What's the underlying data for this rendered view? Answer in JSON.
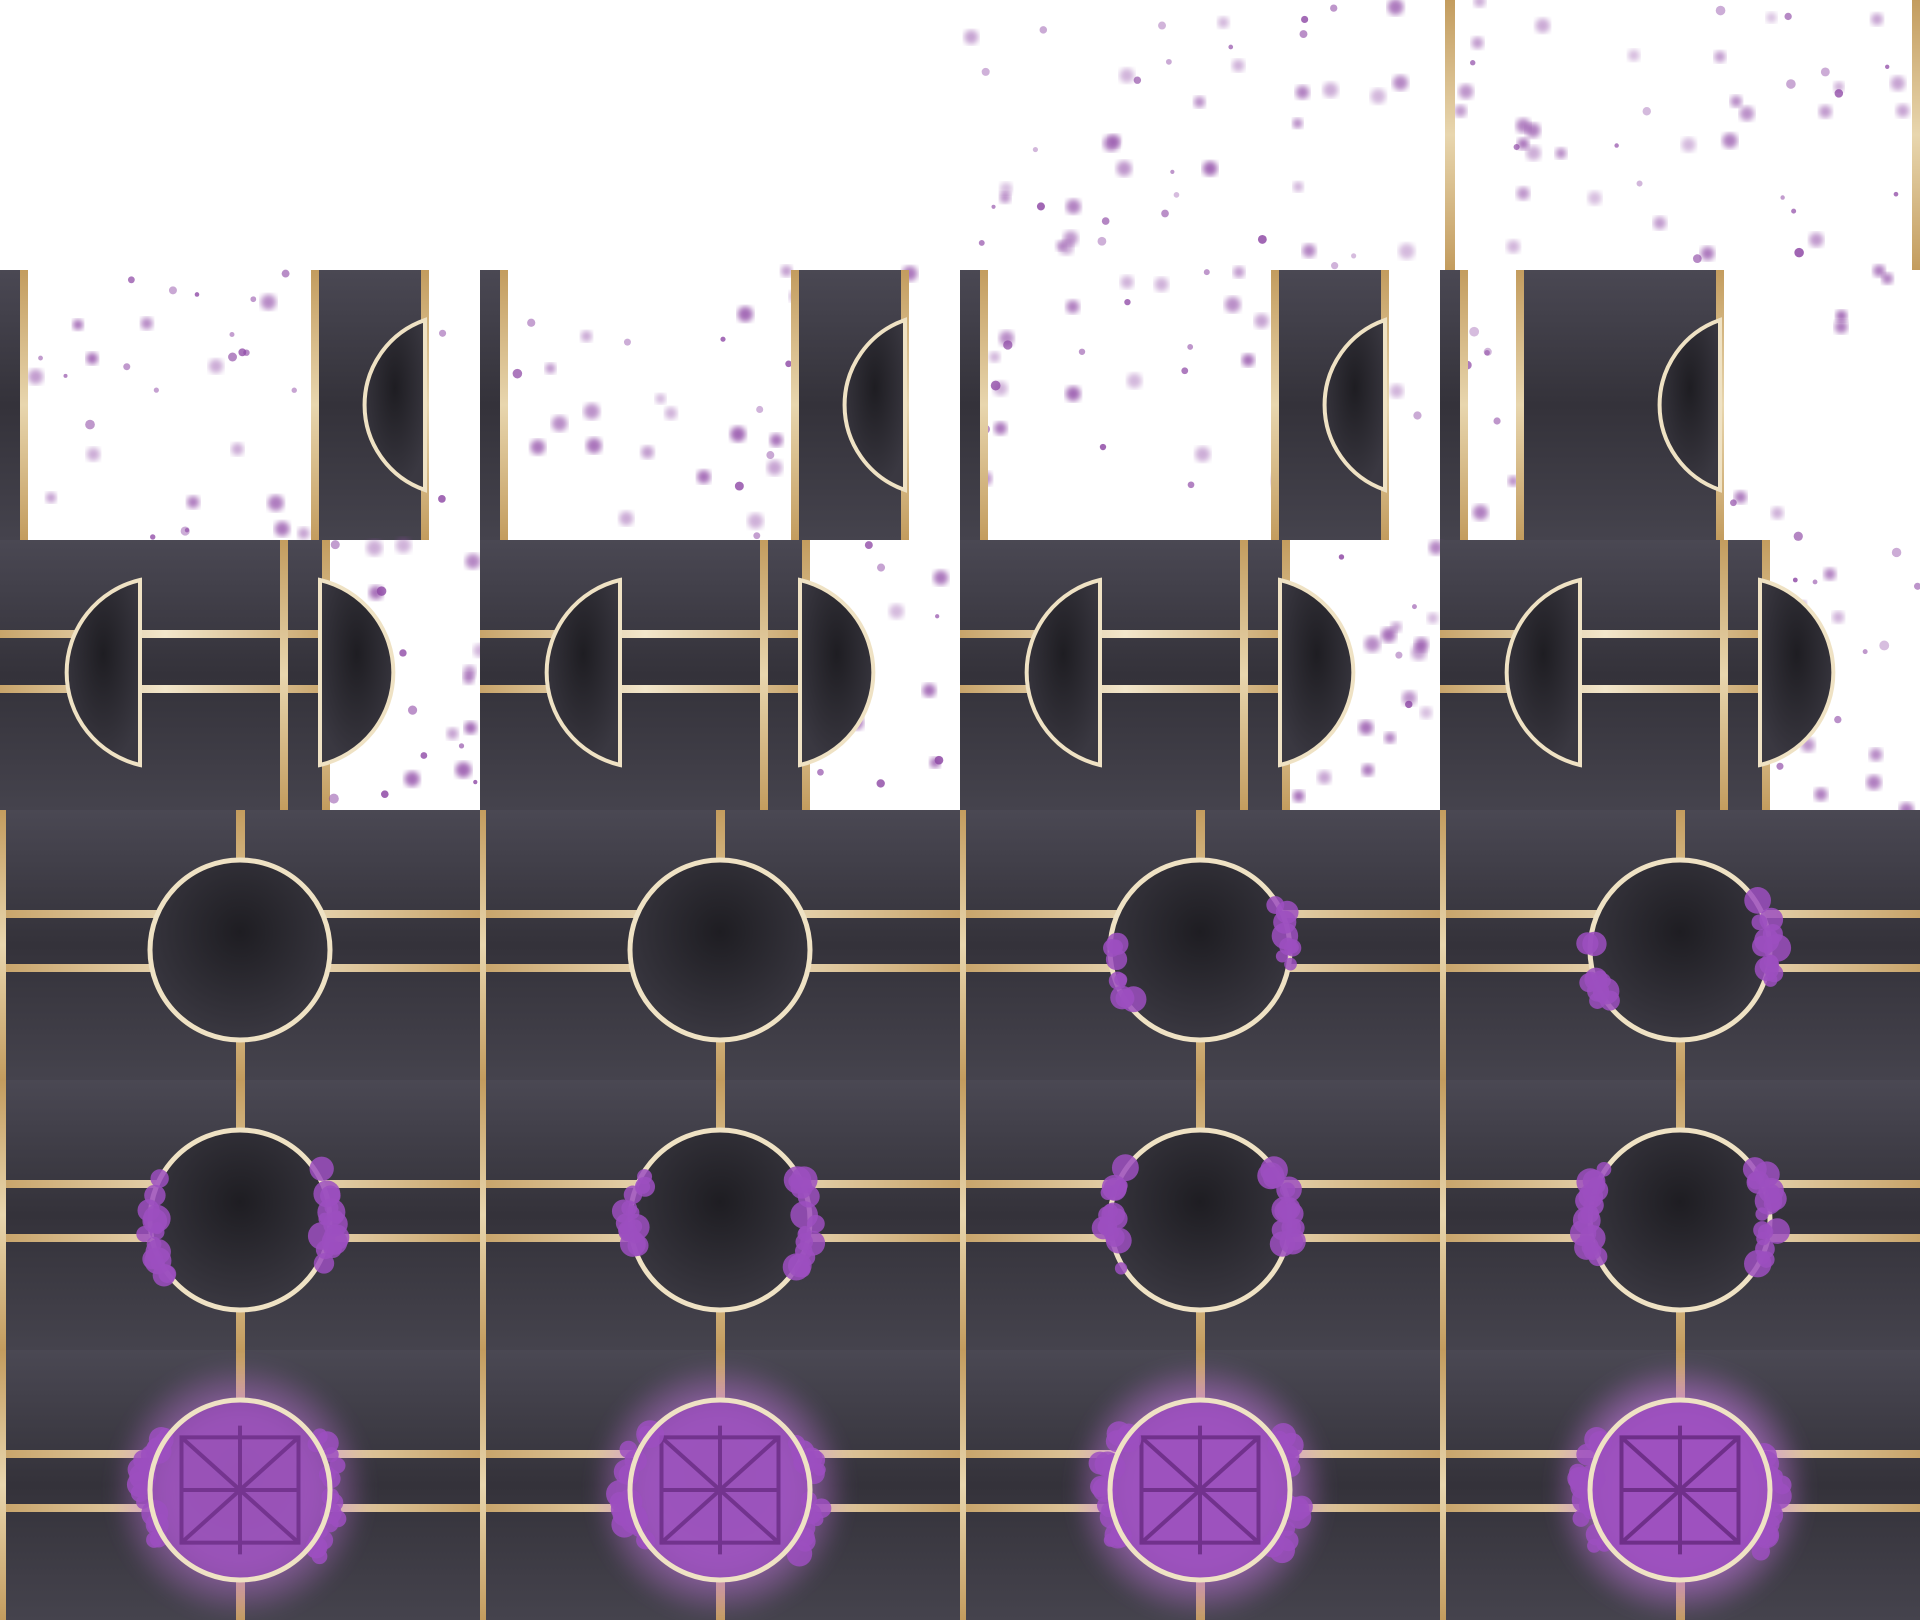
{
  "sheet": {
    "description_name": "sprite-sheet",
    "rows": [
      {
        "name": "row-1-particles",
        "frames": [
          {
            "kind": "empty"
          },
          {
            "kind": "empty"
          },
          {
            "kind": "particles",
            "density": "medium",
            "tower": "none"
          },
          {
            "kind": "particles",
            "density": "medium",
            "tower": "bar"
          }
        ]
      },
      {
        "name": "row-2-pillars",
        "frames": [
          {
            "kind": "pillar",
            "left": true,
            "right": true
          },
          {
            "kind": "pillar",
            "left": true,
            "right": true
          },
          {
            "kind": "pillar",
            "left": true,
            "right": true
          },
          {
            "kind": "pillar",
            "left": true,
            "right": true
          }
        ]
      },
      {
        "name": "row-3-half-circles",
        "frames": [
          {
            "kind": "halves"
          },
          {
            "kind": "halves"
          },
          {
            "kind": "halves"
          },
          {
            "kind": "halves"
          }
        ]
      },
      {
        "name": "row-4-circles",
        "frames": [
          {
            "kind": "ring",
            "glow": 0
          },
          {
            "kind": "ring",
            "glow": 0
          },
          {
            "kind": "ring",
            "glow": 0.15
          },
          {
            "kind": "ring",
            "glow": 0.3
          }
        ]
      },
      {
        "name": "row-5-circles",
        "frames": [
          {
            "kind": "ring",
            "glow": 0.45
          },
          {
            "kind": "ring",
            "glow": 0.5
          },
          {
            "kind": "ring",
            "glow": 0.55
          },
          {
            "kind": "ring",
            "glow": 0.6
          }
        ]
      },
      {
        "name": "row-6-activated",
        "frames": [
          {
            "kind": "rune",
            "glow": 0.7
          },
          {
            "kind": "rune",
            "glow": 0.8
          },
          {
            "kind": "rune",
            "glow": 0.9
          },
          {
            "kind": "rune",
            "glow": 1.0
          }
        ]
      }
    ],
    "colors": {
      "background": "#ffffff",
      "panel_dark": "#2b2a31",
      "panel_light": "#4a4853",
      "gold": "#c8a46a",
      "gold_light": "#efe2c4",
      "purple": "#9c4fbf",
      "purple_glow": "#c879e6",
      "particle": "#8f4aa6"
    }
  }
}
